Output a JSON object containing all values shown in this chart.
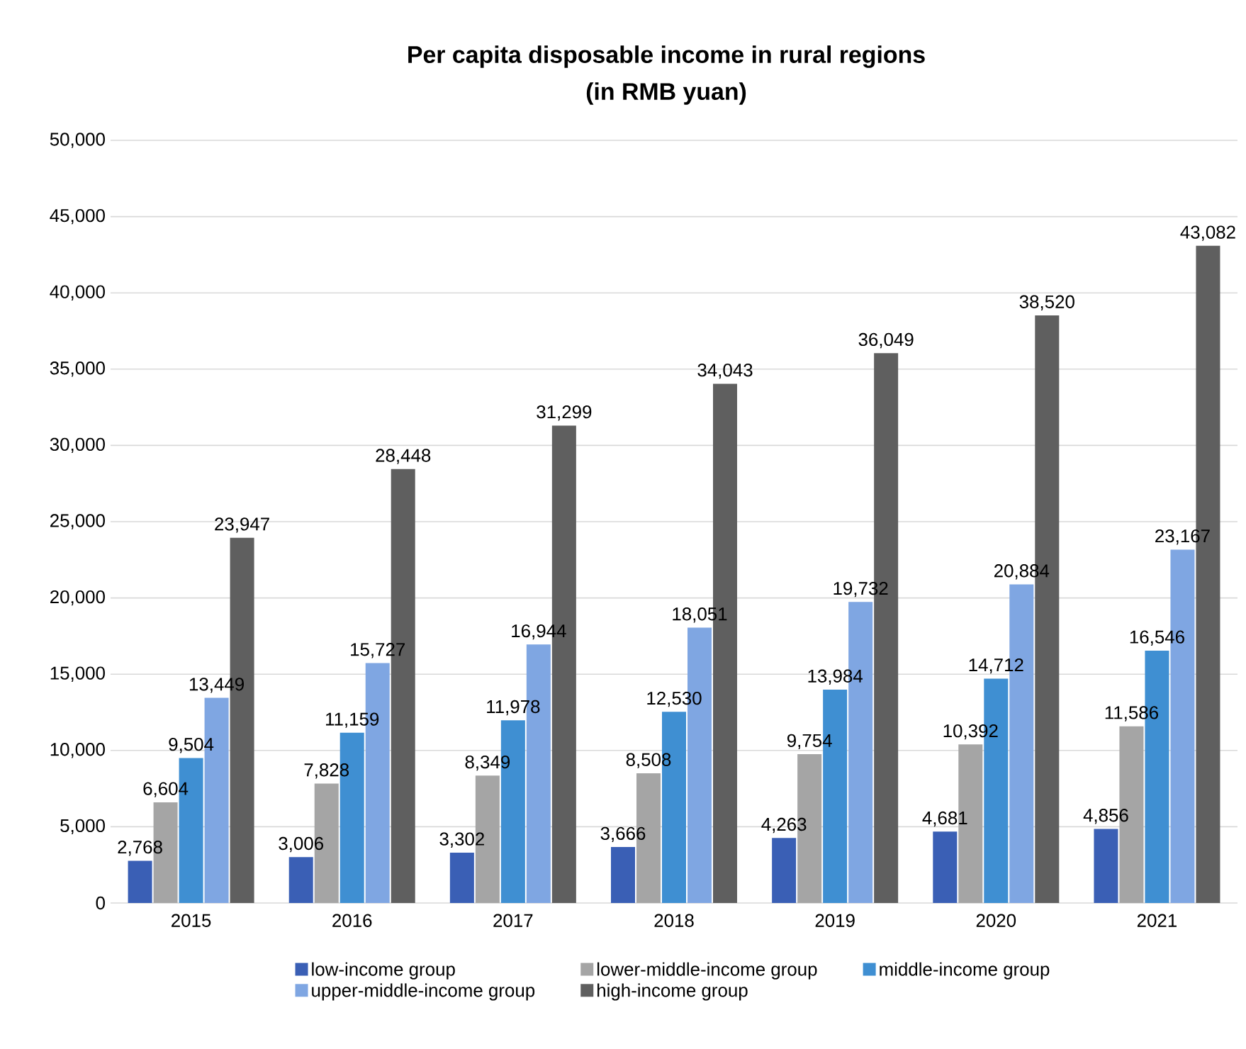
{
  "chart_data": {
    "type": "bar",
    "title": "Per capita disposable income in rural regions",
    "subtitle": "(in RMB yuan)",
    "categories": [
      "2015",
      "2016",
      "2017",
      "2018",
      "2019",
      "2020",
      "2021"
    ],
    "series": [
      {
        "name": "low-income group",
        "color": "#3a5fb5",
        "values": [
          2768,
          3006,
          3302,
          3666,
          4263,
          4681,
          4856
        ],
        "value_labels": [
          "2,768",
          "3,006",
          "3,302",
          "3,666",
          "4,263",
          "4,681",
          "4,856"
        ]
      },
      {
        "name": "lower-middle-income group",
        "color": "#a5a5a5",
        "values": [
          6604,
          7828,
          8349,
          8508,
          9754,
          10392,
          11586
        ],
        "value_labels": [
          "6,604",
          "7,828",
          "8,349",
          "8,508",
          "9,754",
          "10,392",
          "11,586"
        ]
      },
      {
        "name": "middle-income group",
        "color": "#3f8fd2",
        "values": [
          9504,
          11159,
          11978,
          12530,
          13984,
          14712,
          16546
        ],
        "value_labels": [
          "9,504",
          "11,159",
          "11,978",
          "12,530",
          "13,984",
          "14,712",
          "16,546"
        ]
      },
      {
        "name": "upper-middle-income group",
        "color": "#7fa6e2",
        "values": [
          13449,
          15727,
          16944,
          18051,
          19732,
          20884,
          23167
        ],
        "value_labels": [
          "13,449",
          "15,727",
          "16,944",
          "18,051",
          "19,732",
          "20,884",
          "23,167"
        ]
      },
      {
        "name": "high-income group",
        "color": "#5f5f5f",
        "values": [
          23947,
          28448,
          31299,
          34043,
          36049,
          38520,
          43082
        ],
        "value_labels": [
          "23,947",
          "28,448",
          "31,299",
          "34,043",
          "36,049",
          "38,520",
          "43,082"
        ]
      }
    ],
    "ylim": [
      0,
      50000
    ],
    "yticks": [
      0,
      {
        "value": 5000,
        "label": "5,000"
      },
      {
        "value": 10000,
        "label": "10,000"
      },
      {
        "value": 15000,
        "label": "15,000"
      },
      {
        "value": 20000,
        "label": "20,000"
      },
      {
        "value": 25000,
        "label": "25,000"
      },
      {
        "value": 30000,
        "label": "30,000"
      },
      {
        "value": 35000,
        "label": "35,000"
      },
      {
        "value": 40000,
        "label": "40,000"
      },
      {
        "value": 45000,
        "label": "45,000"
      },
      {
        "value": 50000,
        "label": "50,000"
      }
    ],
    "grid": "y",
    "legend": "bottom"
  }
}
